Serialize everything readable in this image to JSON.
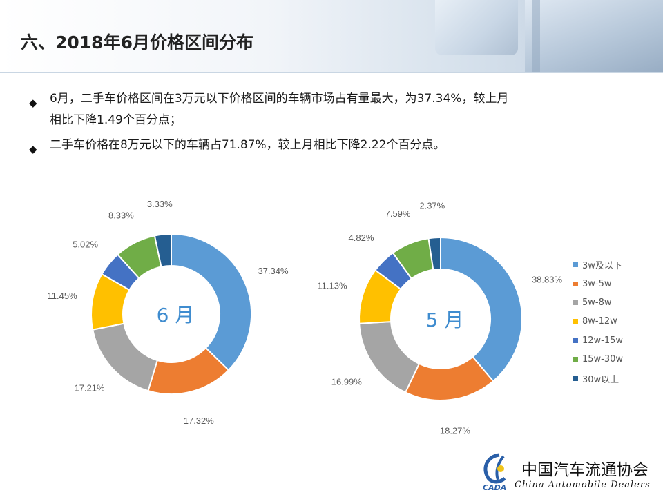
{
  "header": {
    "title": "六、2018年6月价格区间分布"
  },
  "bullets": [
    {
      "lines": [
        "6月，二手车价格区间在3万元以下价格区间的车辆市场占有量最大，为37.34%，较上月",
        "相比下降1.49个百分点；"
      ]
    },
    {
      "lines": [
        "二手车价格在8万元以下的车辆占71.87%，较上月相比下降2.22个百分点。"
      ]
    }
  ],
  "chart_data": [
    {
      "type": "pie",
      "variant": "donut",
      "center_label": "6 月",
      "categories": [
        "3w及以下",
        "3w-5w",
        "5w-8w",
        "8w-12w",
        "12w-15w",
        "15w-30w",
        "30w以上"
      ],
      "values": [
        37.34,
        17.32,
        17.21,
        11.45,
        5.02,
        8.33,
        3.33
      ],
      "labels": [
        "37.34%",
        "17.32%",
        "17.21%",
        "11.45%",
        "5.02%",
        "8.33%",
        "3.33%"
      ]
    },
    {
      "type": "pie",
      "variant": "donut",
      "center_label": "5 月",
      "categories": [
        "3w及以下",
        "3w-5w",
        "5w-8w",
        "8w-12w",
        "12w-15w",
        "15w-30w",
        "30w以上"
      ],
      "values": [
        38.83,
        18.27,
        16.99,
        11.13,
        4.82,
        7.59,
        2.37
      ],
      "labels": [
        "38.83%",
        "18.27%",
        "16.99%",
        "11.13%",
        "4.82%",
        "7.59%",
        "2.37%"
      ]
    }
  ],
  "legend": {
    "placement": "right",
    "items": [
      "3w及以下",
      "3w-5w",
      "5w-8w",
      "8w-12w",
      "12w-15w",
      "15w-30w",
      "30w以上"
    ]
  },
  "colors": [
    "#5b9bd5",
    "#ed7d31",
    "#a5a5a5",
    "#ffc000",
    "#4472c4",
    "#70ad47",
    "#255e91"
  ],
  "footer": {
    "org_cn": "中国汽车流通协会",
    "org_en": "China  Automobile Dealers",
    "logo_text": "CADA"
  }
}
